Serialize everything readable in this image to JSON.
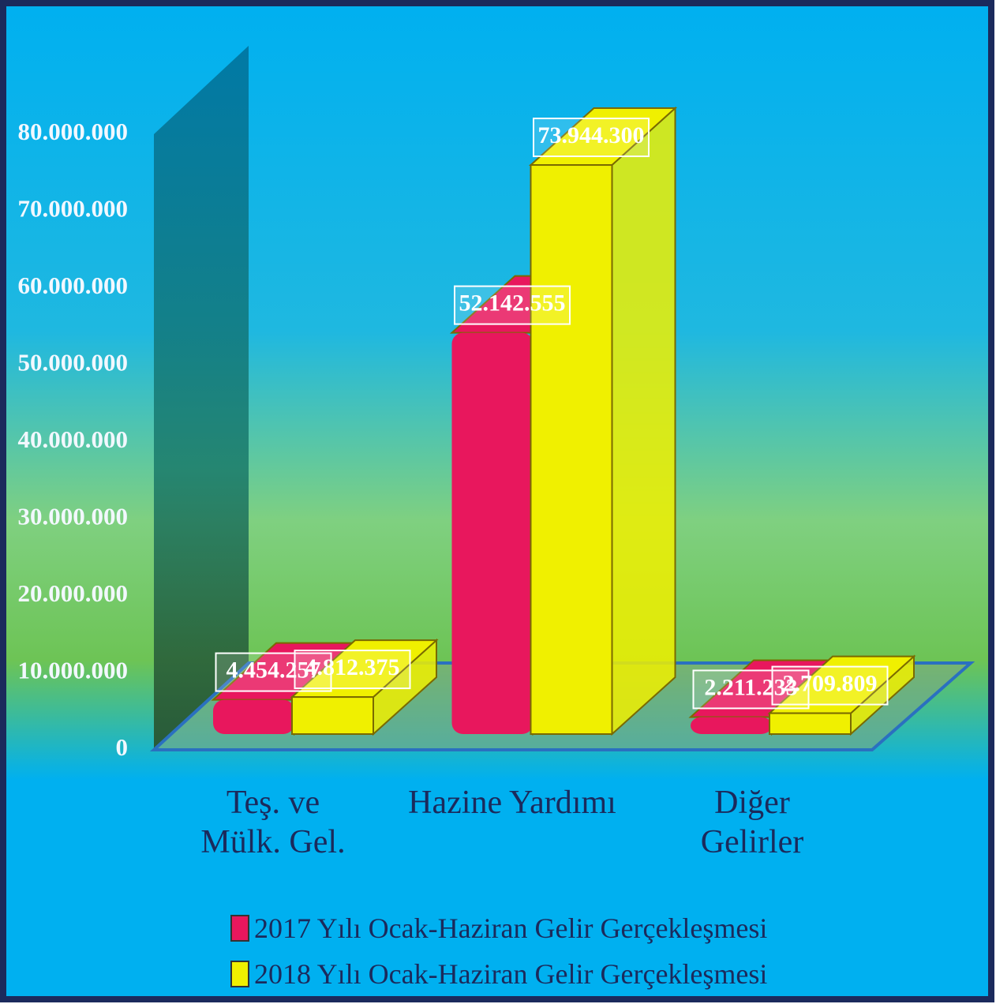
{
  "chart_data": {
    "type": "bar3d",
    "categories": [
      "Teş. ve Mülk. Gel.",
      "Hazine Yardımı",
      "Diğer Gelirler"
    ],
    "series": [
      {
        "name": "2017 Yılı Ocak-Haziran Gelir Gerçekleşmesi",
        "color": "#e8175d",
        "values": [
          4454257,
          52142555,
          2211233
        ],
        "value_labels": [
          "4.454.257",
          "52.142.555",
          "2.211.233"
        ]
      },
      {
        "name": "2018 Yılı Ocak-Haziran Gelir Gerçekleşmesi",
        "color": "#f0f000",
        "values": [
          4812375,
          73944300,
          2709809
        ],
        "value_labels": [
          "4.812.375",
          "73.944.300",
          "2.709.809"
        ]
      }
    ],
    "ylim": [
      0,
      80000000
    ],
    "yticks": [
      0,
      {
        "value": 10000000,
        "label": "10.000.000"
      },
      {
        "value": 20000000,
        "label": "20.000.000"
      },
      {
        "value": 30000000,
        "label": "30.000.000"
      },
      {
        "value": 40000000,
        "label": "40.000.000"
      },
      {
        "value": 50000000,
        "label": "50.000.000"
      },
      {
        "value": 60000000,
        "label": "60.000.000"
      },
      {
        "value": 70000000,
        "label": "70.000.000"
      },
      {
        "value": 80000000,
        "label": "80.000.000"
      }
    ],
    "legend": "bottom"
  }
}
